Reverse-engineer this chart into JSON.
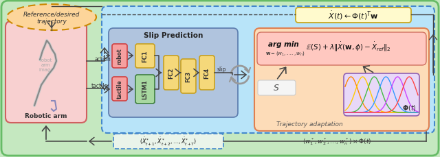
{
  "fig_width": 6.4,
  "fig_height": 2.3,
  "bg_outer": "#c5e8c0",
  "bg_main_box": "#b8e4f9",
  "bg_slip_pred": "#b0c4de",
  "bg_traj_adapt": "#fddcb8",
  "bg_robot_box": "#f8d0d0",
  "bg_ref_ellipse": "#fdd59a",
  "bg_formula_box": "#fffacd",
  "bg_formula_inner": "#ffc8c0",
  "bg_phi_box": "#e8d8f8",
  "bg_s_box": "#f0f0f0",
  "ref_text": "Reference/desired\ntrajectory",
  "slip_pred_title": "Slip Prediction",
  "robot_arm_label": "Robotic arm",
  "traj_adapt_label": "Trajectory adaptation",
  "formula_top": "$\\dot{X}(t) \\leftarrow \\Phi(t)^T \\mathbf{w}$",
  "argmin_text": "arg min",
  "sub_w_text": "$\\mathbf{w}$$=(w_1,...,w_n)$",
  "formula_rhs": "$\\mathbb{E}(S) + \\lambda\\|\\dot{X}(\\mathbf{w},\\phi) - \\dot{X}_{ref}\\|_2$",
  "phi_label": "$\\boldsymbol{\\Phi}(t)$",
  "s_label": "$S$",
  "bottom_formula": "$(w_1^*, w_2^*, \\ldots, w_n^*) \\times \\Phi(t)$",
  "output_formula": "$(\\dot{X}^*_{t+1}, \\dot{X}^*_{t+2}, \\ldots, \\dot{X}^*_{t+T})$",
  "action_label": "action",
  "tactile_label": "tactile",
  "slip_label": "slip",
  "robot_label": "robot",
  "fc1_label": "FC1",
  "fc2_label": "FC2",
  "fc3_label": "FC3",
  "fc4_label": "FC4",
  "tactile_box_label": "tactile",
  "lstm_label": "LSTM1",
  "fc_box_color": "#f5d87a",
  "fc_edge_color": "#c8a020",
  "robot_inner_color": "#f5a0a0",
  "robot_inner_edge": "#d04040",
  "tactile_inner_color": "#f5a0a0",
  "tactile_inner_edge": "#d04040",
  "lstm_color": "#a8d8a0",
  "lstm_edge": "#408040",
  "arrow_color": "#444444",
  "dashed_color": "#4488cc",
  "outer_edge": "#66bb66",
  "traj_edge": "#e08050",
  "formula_top_edge": "#c8a820",
  "phi_edge": "#9060b0"
}
